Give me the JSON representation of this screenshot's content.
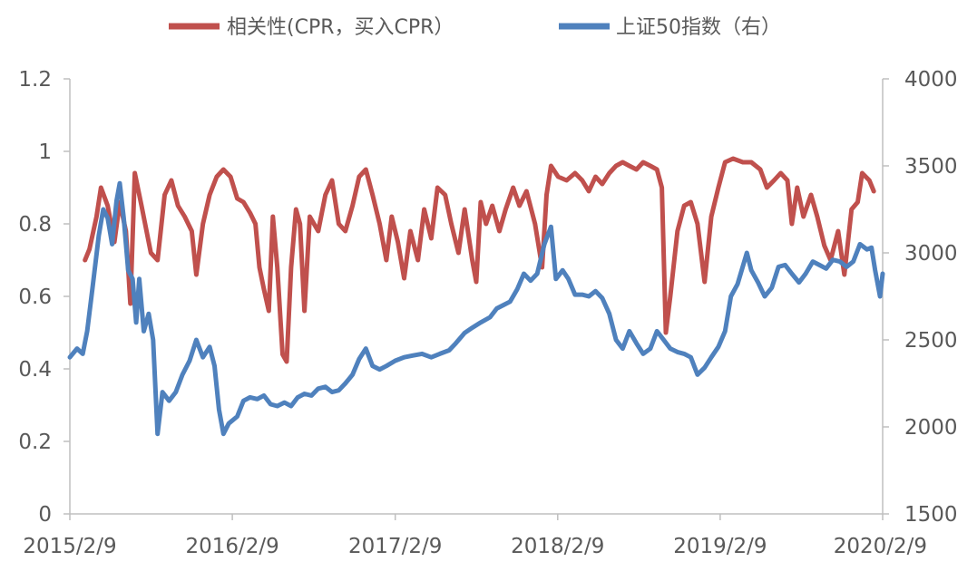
{
  "chart_data": {
    "type": "line",
    "title": "",
    "legend": {
      "placement": "top-center",
      "entries": [
        "相关性(CPR，买入CPR）",
        "上证50指数（右）"
      ]
    },
    "x_tick_labels": [
      "2015/2/9",
      "2016/2/9",
      "2017/2/9",
      "2018/2/9",
      "2019/2/9",
      "2020/2/9"
    ],
    "x_range": [
      "2015-02-09",
      "2020-02-09"
    ],
    "y_left": {
      "ticks": [
        "0",
        "0.2",
        "0.4",
        "0.6",
        "0.8",
        "1",
        "1.2"
      ],
      "range": [
        0,
        1.2
      ]
    },
    "y_right": {
      "ticks": [
        "1500",
        "2000",
        "2500",
        "3000",
        "3500",
        "4000"
      ],
      "range": [
        1500,
        4000
      ]
    },
    "series": [
      {
        "name": "相关性(CPR，买入CPR）",
        "axis": "left",
        "color": "#c0504d",
        "points": [
          [
            "2015-03-15",
            0.7
          ],
          [
            "2015-03-25",
            0.73
          ],
          [
            "2015-04-10",
            0.82
          ],
          [
            "2015-04-20",
            0.9
          ],
          [
            "2015-05-05",
            0.85
          ],
          [
            "2015-05-20",
            0.75
          ],
          [
            "2015-06-01",
            0.86
          ],
          [
            "2015-06-15",
            0.78
          ],
          [
            "2015-06-25",
            0.58
          ],
          [
            "2015-07-05",
            0.94
          ],
          [
            "2015-07-20",
            0.85
          ],
          [
            "2015-08-10",
            0.72
          ],
          [
            "2015-08-25",
            0.7
          ],
          [
            "2015-09-10",
            0.88
          ],
          [
            "2015-09-25",
            0.92
          ],
          [
            "2015-10-10",
            0.85
          ],
          [
            "2015-10-25",
            0.82
          ],
          [
            "2015-11-10",
            0.78
          ],
          [
            "2015-11-20",
            0.66
          ],
          [
            "2015-12-05",
            0.8
          ],
          [
            "2015-12-20",
            0.88
          ],
          [
            "2016-01-05",
            0.93
          ],
          [
            "2016-01-20",
            0.95
          ],
          [
            "2016-02-05",
            0.93
          ],
          [
            "2016-02-20",
            0.87
          ],
          [
            "2016-03-05",
            0.86
          ],
          [
            "2016-03-20",
            0.83
          ],
          [
            "2016-04-01",
            0.8
          ],
          [
            "2016-04-10",
            0.68
          ],
          [
            "2016-04-20",
            0.62
          ],
          [
            "2016-05-01",
            0.56
          ],
          [
            "2016-05-10",
            0.82
          ],
          [
            "2016-05-20",
            0.68
          ],
          [
            "2016-06-01",
            0.44
          ],
          [
            "2016-06-10",
            0.42
          ],
          [
            "2016-06-20",
            0.68
          ],
          [
            "2016-07-01",
            0.84
          ],
          [
            "2016-07-10",
            0.8
          ],
          [
            "2016-07-20",
            0.56
          ],
          [
            "2016-08-01",
            0.82
          ],
          [
            "2016-08-20",
            0.78
          ],
          [
            "2016-09-05",
            0.88
          ],
          [
            "2016-09-20",
            0.92
          ],
          [
            "2016-10-05",
            0.8
          ],
          [
            "2016-10-20",
            0.78
          ],
          [
            "2016-11-05",
            0.85
          ],
          [
            "2016-11-20",
            0.93
          ],
          [
            "2016-12-05",
            0.95
          ],
          [
            "2016-12-20",
            0.88
          ],
          [
            "2017-01-05",
            0.8
          ],
          [
            "2017-01-20",
            0.7
          ],
          [
            "2017-02-01",
            0.82
          ],
          [
            "2017-02-15",
            0.75
          ],
          [
            "2017-03-01",
            0.65
          ],
          [
            "2017-03-15",
            0.78
          ],
          [
            "2017-04-01",
            0.7
          ],
          [
            "2017-04-15",
            0.84
          ],
          [
            "2017-05-01",
            0.76
          ],
          [
            "2017-05-15",
            0.9
          ],
          [
            "2017-06-01",
            0.88
          ],
          [
            "2017-06-15",
            0.8
          ],
          [
            "2017-07-01",
            0.72
          ],
          [
            "2017-07-15",
            0.84
          ],
          [
            "2017-08-01",
            0.7
          ],
          [
            "2017-08-10",
            0.64
          ],
          [
            "2017-08-20",
            0.86
          ],
          [
            "2017-09-01",
            0.8
          ],
          [
            "2017-09-15",
            0.85
          ],
          [
            "2017-10-01",
            0.78
          ],
          [
            "2017-10-15",
            0.84
          ],
          [
            "2017-11-01",
            0.9
          ],
          [
            "2017-11-15",
            0.85
          ],
          [
            "2017-12-01",
            0.89
          ],
          [
            "2017-12-20",
            0.8
          ],
          [
            "2018-01-05",
            0.68
          ],
          [
            "2018-01-15",
            0.88
          ],
          [
            "2018-01-25",
            0.96
          ],
          [
            "2018-02-10",
            0.93
          ],
          [
            "2018-03-01",
            0.92
          ],
          [
            "2018-03-20",
            0.94
          ],
          [
            "2018-04-05",
            0.92
          ],
          [
            "2018-04-20",
            0.89
          ],
          [
            "2018-05-05",
            0.93
          ],
          [
            "2018-05-20",
            0.91
          ],
          [
            "2018-06-05",
            0.94
          ],
          [
            "2018-06-20",
            0.96
          ],
          [
            "2018-07-05",
            0.97
          ],
          [
            "2018-07-20",
            0.96
          ],
          [
            "2018-08-05",
            0.95
          ],
          [
            "2018-08-20",
            0.97
          ],
          [
            "2018-09-05",
            0.96
          ],
          [
            "2018-09-20",
            0.95
          ],
          [
            "2018-10-01",
            0.9
          ],
          [
            "2018-10-10",
            0.5
          ],
          [
            "2018-10-20",
            0.6
          ],
          [
            "2018-11-05",
            0.78
          ],
          [
            "2018-11-20",
            0.85
          ],
          [
            "2018-12-05",
            0.86
          ],
          [
            "2018-12-20",
            0.8
          ],
          [
            "2019-01-05",
            0.64
          ],
          [
            "2019-01-20",
            0.82
          ],
          [
            "2019-02-05",
            0.9
          ],
          [
            "2019-02-20",
            0.97
          ],
          [
            "2019-03-10",
            0.98
          ],
          [
            "2019-04-01",
            0.97
          ],
          [
            "2019-04-20",
            0.97
          ],
          [
            "2019-05-10",
            0.95
          ],
          [
            "2019-05-25",
            0.9
          ],
          [
            "2019-06-10",
            0.92
          ],
          [
            "2019-06-25",
            0.94
          ],
          [
            "2019-07-10",
            0.92
          ],
          [
            "2019-07-20",
            0.8
          ],
          [
            "2019-08-01",
            0.9
          ],
          [
            "2019-08-15",
            0.82
          ],
          [
            "2019-09-01",
            0.88
          ],
          [
            "2019-09-15",
            0.82
          ],
          [
            "2019-10-01",
            0.74
          ],
          [
            "2019-10-15",
            0.7
          ],
          [
            "2019-11-01",
            0.78
          ],
          [
            "2019-11-15",
            0.66
          ],
          [
            "2019-12-01",
            0.84
          ],
          [
            "2019-12-15",
            0.86
          ],
          [
            "2019-12-25",
            0.94
          ],
          [
            "2020-01-10",
            0.92
          ],
          [
            "2020-01-20",
            0.89
          ]
        ]
      },
      {
        "name": "上证50指数（右）",
        "axis": "right",
        "color": "#4f81bd",
        "points": [
          [
            "2015-02-09",
            2400
          ],
          [
            "2015-02-25",
            2450
          ],
          [
            "2015-03-10",
            2420
          ],
          [
            "2015-03-20",
            2550
          ],
          [
            "2015-04-01",
            2800
          ],
          [
            "2015-04-15",
            3100
          ],
          [
            "2015-04-25",
            3250
          ],
          [
            "2015-05-05",
            3200
          ],
          [
            "2015-05-15",
            3050
          ],
          [
            "2015-05-25",
            3300
          ],
          [
            "2015-06-01",
            3400
          ],
          [
            "2015-06-10",
            3200
          ],
          [
            "2015-06-20",
            2900
          ],
          [
            "2015-06-30",
            2850
          ],
          [
            "2015-07-08",
            2600
          ],
          [
            "2015-07-15",
            2850
          ],
          [
            "2015-07-25",
            2550
          ],
          [
            "2015-08-05",
            2650
          ],
          [
            "2015-08-15",
            2500
          ],
          [
            "2015-08-25",
            1960
          ],
          [
            "2015-09-05",
            2200
          ],
          [
            "2015-09-20",
            2150
          ],
          [
            "2015-10-05",
            2200
          ],
          [
            "2015-10-20",
            2300
          ],
          [
            "2015-11-05",
            2380
          ],
          [
            "2015-11-20",
            2500
          ],
          [
            "2015-12-05",
            2400
          ],
          [
            "2015-12-20",
            2460
          ],
          [
            "2015-12-31",
            2350
          ],
          [
            "2016-01-10",
            2100
          ],
          [
            "2016-01-20",
            1960
          ],
          [
            "2016-02-01",
            2020
          ],
          [
            "2016-02-20",
            2060
          ],
          [
            "2016-03-05",
            2150
          ],
          [
            "2016-03-20",
            2170
          ],
          [
            "2016-04-05",
            2160
          ],
          [
            "2016-04-20",
            2180
          ],
          [
            "2016-05-05",
            2130
          ],
          [
            "2016-05-20",
            2120
          ],
          [
            "2016-06-05",
            2140
          ],
          [
            "2016-06-20",
            2120
          ],
          [
            "2016-07-05",
            2170
          ],
          [
            "2016-07-20",
            2190
          ],
          [
            "2016-08-05",
            2180
          ],
          [
            "2016-08-20",
            2220
          ],
          [
            "2016-09-05",
            2230
          ],
          [
            "2016-09-20",
            2200
          ],
          [
            "2016-10-05",
            2210
          ],
          [
            "2016-10-20",
            2250
          ],
          [
            "2016-11-05",
            2300
          ],
          [
            "2016-11-20",
            2390
          ],
          [
            "2016-12-05",
            2450
          ],
          [
            "2016-12-20",
            2350
          ],
          [
            "2017-01-05",
            2330
          ],
          [
            "2017-01-20",
            2350
          ],
          [
            "2017-02-09",
            2380
          ],
          [
            "2017-03-01",
            2400
          ],
          [
            "2017-03-20",
            2410
          ],
          [
            "2017-04-10",
            2420
          ],
          [
            "2017-05-01",
            2400
          ],
          [
            "2017-05-20",
            2420
          ],
          [
            "2017-06-10",
            2440
          ],
          [
            "2017-06-25",
            2480
          ],
          [
            "2017-07-15",
            2540
          ],
          [
            "2017-08-01",
            2570
          ],
          [
            "2017-08-20",
            2600
          ],
          [
            "2017-09-10",
            2630
          ],
          [
            "2017-09-25",
            2680
          ],
          [
            "2017-10-10",
            2700
          ],
          [
            "2017-10-25",
            2720
          ],
          [
            "2017-11-10",
            2790
          ],
          [
            "2017-11-25",
            2880
          ],
          [
            "2017-12-10",
            2840
          ],
          [
            "2017-12-25",
            2880
          ],
          [
            "2018-01-10",
            3050
          ],
          [
            "2018-01-25",
            3150
          ],
          [
            "2018-02-05",
            2850
          ],
          [
            "2018-02-20",
            2900
          ],
          [
            "2018-03-05",
            2850
          ],
          [
            "2018-03-20",
            2760
          ],
          [
            "2018-04-05",
            2760
          ],
          [
            "2018-04-20",
            2750
          ],
          [
            "2018-05-05",
            2780
          ],
          [
            "2018-05-20",
            2740
          ],
          [
            "2018-06-05",
            2650
          ],
          [
            "2018-06-20",
            2500
          ],
          [
            "2018-07-05",
            2450
          ],
          [
            "2018-07-20",
            2550
          ],
          [
            "2018-08-05",
            2480
          ],
          [
            "2018-08-20",
            2420
          ],
          [
            "2018-09-05",
            2450
          ],
          [
            "2018-09-20",
            2550
          ],
          [
            "2018-10-05",
            2500
          ],
          [
            "2018-10-20",
            2450
          ],
          [
            "2018-11-05",
            2430
          ],
          [
            "2018-11-20",
            2420
          ],
          [
            "2018-12-05",
            2400
          ],
          [
            "2018-12-20",
            2300
          ],
          [
            "2019-01-05",
            2340
          ],
          [
            "2019-01-20",
            2400
          ],
          [
            "2019-02-05",
            2460
          ],
          [
            "2019-02-20",
            2550
          ],
          [
            "2019-03-05",
            2750
          ],
          [
            "2019-03-20",
            2820
          ],
          [
            "2019-04-10",
            3000
          ],
          [
            "2019-04-20",
            2900
          ],
          [
            "2019-05-05",
            2830
          ],
          [
            "2019-05-20",
            2750
          ],
          [
            "2019-06-05",
            2800
          ],
          [
            "2019-06-20",
            2920
          ],
          [
            "2019-07-05",
            2930
          ],
          [
            "2019-07-20",
            2880
          ],
          [
            "2019-08-05",
            2830
          ],
          [
            "2019-08-20",
            2880
          ],
          [
            "2019-09-05",
            2950
          ],
          [
            "2019-09-20",
            2930
          ],
          [
            "2019-10-05",
            2910
          ],
          [
            "2019-10-20",
            2960
          ],
          [
            "2019-11-05",
            2950
          ],
          [
            "2019-11-20",
            2920
          ],
          [
            "2019-12-05",
            2950
          ],
          [
            "2019-12-20",
            3050
          ],
          [
            "2020-01-05",
            3020
          ],
          [
            "2020-01-15",
            3030
          ],
          [
            "2020-01-23",
            2900
          ],
          [
            "2020-02-03",
            2750
          ],
          [
            "2020-02-09",
            2880
          ]
        ]
      }
    ]
  }
}
